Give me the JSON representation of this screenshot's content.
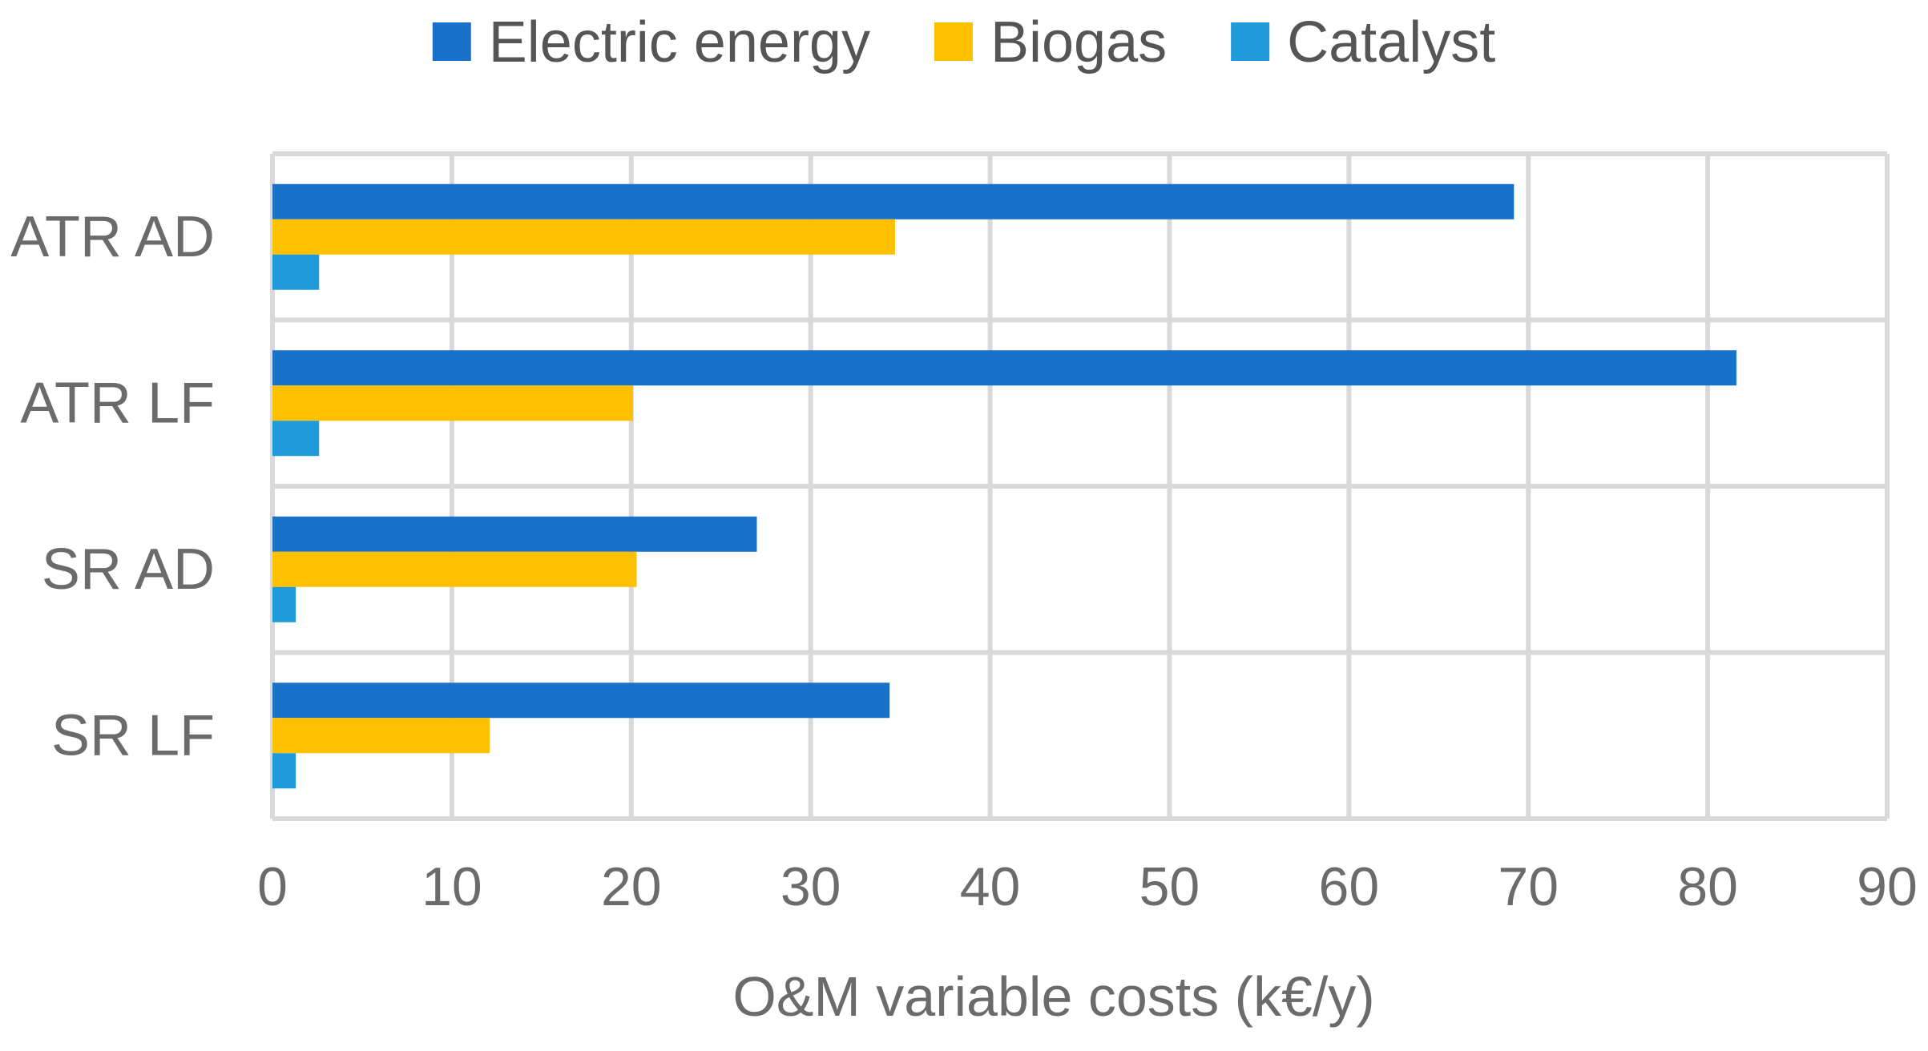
{
  "chart_data": {
    "type": "bar",
    "orientation": "horizontal",
    "title": "",
    "xlabel": "O&M variable costs (k€/y)",
    "ylabel": "",
    "xlim": [
      0,
      90
    ],
    "xticks": [
      "0",
      "10",
      "20",
      "30",
      "40",
      "50",
      "60",
      "70",
      "80",
      "90"
    ],
    "xtick_values": [
      0,
      10,
      20,
      30,
      40,
      50,
      60,
      70,
      80,
      90
    ],
    "grid": true,
    "legend_position": "top",
    "categories": [
      "ATR AD",
      "ATR LF",
      "SR AD",
      "SR LF"
    ],
    "series": [
      {
        "name": "Electric energy",
        "color": "#1872c9",
        "values": [
          69.2,
          81.6,
          27.0,
          34.4
        ]
      },
      {
        "name": "Biogas",
        "color": "#ffc000",
        "values": [
          34.7,
          20.1,
          20.3,
          12.1
        ]
      },
      {
        "name": "Catalyst",
        "color": "#1f9bdc",
        "values": [
          2.6,
          2.6,
          1.3,
          1.3
        ]
      }
    ],
    "grid_color": "#d9d9d9"
  }
}
